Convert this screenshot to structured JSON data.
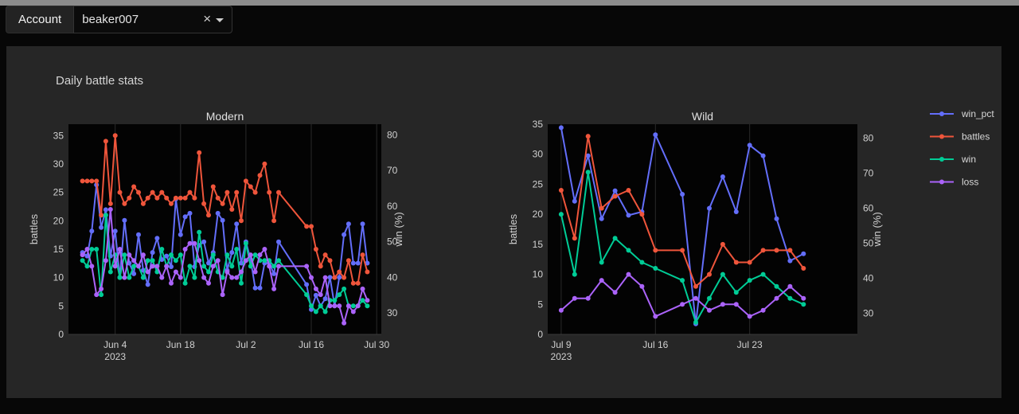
{
  "account": {
    "label": "Account",
    "value": "beaker007",
    "clear": "×"
  },
  "colors": {
    "win_pct": "#636efa",
    "battles": "#ef553b",
    "win": "#00cc96",
    "loss": "#ab63fa"
  },
  "chart_data": {
    "type": "line",
    "title": "Daily battle stats",
    "legend": [
      "win_pct",
      "battles",
      "win",
      "loss"
    ],
    "legend_position": "right",
    "subplots": [
      {
        "name": "Modern",
        "xlabel": "",
        "ylabel": "battles",
        "y2label": "win (%)",
        "xrange": [
          "2023-05-25",
          "2023-07-31"
        ],
        "xticks": [
          {
            "date": "2023-06-04",
            "label": "Jun 4",
            "sub": "2023"
          },
          {
            "date": "2023-06-18",
            "label": "Jun 18",
            "sub": ""
          },
          {
            "date": "2023-07-02",
            "label": "Jul 2",
            "sub": ""
          },
          {
            "date": "2023-07-16",
            "label": "Jul 16",
            "sub": ""
          },
          {
            "date": "2023-07-30",
            "label": "Jul 30",
            "sub": ""
          }
        ],
        "ylim": [
          0,
          37
        ],
        "yticks": [
          0,
          5,
          10,
          15,
          20,
          25,
          30,
          35
        ],
        "y2lim": [
          24,
          83
        ],
        "y2ticks": [
          30,
          40,
          50,
          60,
          70,
          80
        ],
        "series": [
          {
            "name": "win_pct",
            "axis": "y2",
            "x": [
              "2023-05-28",
              "2023-05-29",
              "2023-05-30",
              "2023-05-31",
              "2023-06-01",
              "2023-06-02",
              "2023-06-03",
              "2023-06-04",
              "2023-06-05",
              "2023-06-06",
              "2023-06-07",
              "2023-06-08",
              "2023-06-09",
              "2023-06-10",
              "2023-06-11",
              "2023-06-12",
              "2023-06-13",
              "2023-06-14",
              "2023-06-15",
              "2023-06-16",
              "2023-06-17",
              "2023-06-18",
              "2023-06-19",
              "2023-06-20",
              "2023-06-21",
              "2023-06-22",
              "2023-06-23",
              "2023-06-24",
              "2023-06-25",
              "2023-06-26",
              "2023-06-27",
              "2023-06-28",
              "2023-06-29",
              "2023-06-30",
              "2023-07-01",
              "2023-07-02",
              "2023-07-03",
              "2023-07-04",
              "2023-07-05",
              "2023-07-06",
              "2023-07-07",
              "2023-07-08",
              "2023-07-09",
              "2023-07-15",
              "2023-07-16",
              "2023-07-17",
              "2023-07-18",
              "2023-07-19",
              "2023-07-20",
              "2023-07-21",
              "2023-07-22",
              "2023-07-23",
              "2023-07-24",
              "2023-07-25",
              "2023-07-26",
              "2023-07-27",
              "2023-07-28"
            ],
            "values": [
              47,
              46,
              53,
              66,
              54,
              59,
              46,
              53,
              40,
              56,
              44,
              41,
              52,
              42,
              38,
              47,
              51,
              45,
              46,
              43,
              62,
              52,
              57,
              58,
              43,
              49,
              50,
              44,
              47,
              58,
              56,
              42,
              47,
              55,
              44,
              50,
              45,
              37,
              37,
              44,
              44,
              41,
              50,
              38,
              31,
              35,
              32,
              34,
              40,
              32,
              40,
              52,
              55,
              44,
              44,
              55,
              44
            ]
          },
          {
            "name": "battles",
            "axis": "y",
            "x": [
              "2023-05-28",
              "2023-05-29",
              "2023-05-30",
              "2023-05-31",
              "2023-06-01",
              "2023-06-02",
              "2023-06-03",
              "2023-06-04",
              "2023-06-05",
              "2023-06-06",
              "2023-06-07",
              "2023-06-08",
              "2023-06-09",
              "2023-06-10",
              "2023-06-11",
              "2023-06-12",
              "2023-06-13",
              "2023-06-14",
              "2023-06-15",
              "2023-06-16",
              "2023-06-17",
              "2023-06-18",
              "2023-06-19",
              "2023-06-20",
              "2023-06-21",
              "2023-06-22",
              "2023-06-23",
              "2023-06-24",
              "2023-06-25",
              "2023-06-26",
              "2023-06-27",
              "2023-06-28",
              "2023-06-29",
              "2023-06-30",
              "2023-07-01",
              "2023-07-02",
              "2023-07-03",
              "2023-07-04",
              "2023-07-05",
              "2023-07-06",
              "2023-07-07",
              "2023-07-08",
              "2023-07-09",
              "2023-07-15",
              "2023-07-16",
              "2023-07-17",
              "2023-07-18",
              "2023-07-19",
              "2023-07-20",
              "2023-07-21",
              "2023-07-22",
              "2023-07-23",
              "2023-07-24",
              "2023-07-25",
              "2023-07-26",
              "2023-07-27",
              "2023-07-28"
            ],
            "values": [
              27,
              27,
              27,
              27,
              21,
              34,
              23,
              35,
              25,
              23,
              24,
              26,
              25,
              23,
              24,
              25,
              24,
              25,
              24,
              23,
              24,
              24,
              24,
              25,
              24,
              32,
              23,
              21,
              26,
              24,
              23,
              25,
              22,
              25,
              20,
              27,
              26,
              25,
              28,
              30,
              25,
              20,
              25,
              19,
              19,
              15,
              12,
              14,
              13,
              10,
              11,
              10,
              13,
              9,
              9,
              14,
              11
            ]
          },
          {
            "name": "win",
            "axis": "y",
            "x": [
              "2023-05-28",
              "2023-05-29",
              "2023-05-30",
              "2023-05-31",
              "2023-06-01",
              "2023-06-02",
              "2023-06-03",
              "2023-06-04",
              "2023-06-05",
              "2023-06-06",
              "2023-06-07",
              "2023-06-08",
              "2023-06-09",
              "2023-06-10",
              "2023-06-11",
              "2023-06-12",
              "2023-06-13",
              "2023-06-14",
              "2023-06-15",
              "2023-06-16",
              "2023-06-17",
              "2023-06-18",
              "2023-06-19",
              "2023-06-20",
              "2023-06-21",
              "2023-06-22",
              "2023-06-23",
              "2023-06-24",
              "2023-06-25",
              "2023-06-26",
              "2023-06-27",
              "2023-06-28",
              "2023-06-29",
              "2023-06-30",
              "2023-07-01",
              "2023-07-02",
              "2023-07-03",
              "2023-07-04",
              "2023-07-05",
              "2023-07-06",
              "2023-07-07",
              "2023-07-08",
              "2023-07-09",
              "2023-07-15",
              "2023-07-16",
              "2023-07-17",
              "2023-07-18",
              "2023-07-19",
              "2023-07-20",
              "2023-07-21",
              "2023-07-22",
              "2023-07-23",
              "2023-07-24",
              "2023-07-25",
              "2023-07-26",
              "2023-07-27",
              "2023-07-28"
            ],
            "values": [
              13,
              12,
              15,
              15,
              7,
              21,
              11,
              14,
              10,
              14,
              10,
              12,
              12,
              10,
              13,
              13,
              11,
              15,
              12,
              14,
              13,
              14,
              9,
              12,
              10,
              18,
              12,
              11,
              14,
              11,
              10,
              14,
              12,
              15,
              9,
              16,
              12,
              14,
              13,
              13,
              13,
              12,
              13,
              7,
              5,
              4,
              5,
              4,
              6,
              6,
              7,
              8,
              5,
              5,
              5,
              6,
              5
            ]
          },
          {
            "name": "loss",
            "axis": "y",
            "x": [
              "2023-05-28",
              "2023-05-29",
              "2023-05-30",
              "2023-05-31",
              "2023-06-01",
              "2023-06-02",
              "2023-06-03",
              "2023-06-04",
              "2023-06-05",
              "2023-06-06",
              "2023-06-07",
              "2023-06-08",
              "2023-06-09",
              "2023-06-10",
              "2023-06-11",
              "2023-06-12",
              "2023-06-13",
              "2023-06-14",
              "2023-06-15",
              "2023-06-16",
              "2023-06-17",
              "2023-06-18",
              "2023-06-19",
              "2023-06-20",
              "2023-06-21",
              "2023-06-22",
              "2023-06-23",
              "2023-06-24",
              "2023-06-25",
              "2023-06-26",
              "2023-06-27",
              "2023-06-28",
              "2023-06-29",
              "2023-06-30",
              "2023-07-01",
              "2023-07-02",
              "2023-07-03",
              "2023-07-04",
              "2023-07-05",
              "2023-07-06",
              "2023-07-07",
              "2023-07-08",
              "2023-07-09",
              "2023-07-15",
              "2023-07-16",
              "2023-07-17",
              "2023-07-18",
              "2023-07-19",
              "2023-07-20",
              "2023-07-21",
              "2023-07-22",
              "2023-07-23",
              "2023-07-24",
              "2023-07-25",
              "2023-07-26",
              "2023-07-27",
              "2023-07-28"
            ],
            "values": [
              14,
              15,
              12,
              7,
              8,
              13,
              22,
              12,
              15,
              10,
              14,
              13,
              12,
              14,
              11,
              12,
              12,
              10,
              12,
              9,
              11,
              10,
              15,
              16,
              16,
              13,
              10,
              9,
              12,
              13,
              7,
              11,
              10,
              10,
              11,
              13,
              14,
              11,
              14,
              15,
              12,
              8,
              12,
              12,
              10,
              8,
              7,
              10,
              5,
              5,
              5,
              2,
              5,
              4,
              5,
              8,
              6
            ]
          }
        ]
      },
      {
        "name": "Wild",
        "xlabel": "",
        "ylabel": "battles",
        "y2label": "win (%)",
        "xrange": [
          "2023-07-08",
          "2023-07-31"
        ],
        "xticks": [
          {
            "date": "2023-07-09",
            "label": "Jul 9",
            "sub": "2023"
          },
          {
            "date": "2023-07-16",
            "label": "Jul 16",
            "sub": ""
          },
          {
            "date": "2023-07-23",
            "label": "Jul 23",
            "sub": ""
          }
        ],
        "ylim": [
          0,
          35
        ],
        "yticks": [
          0,
          5,
          10,
          15,
          20,
          25,
          30,
          35
        ],
        "y2lim": [
          24,
          84
        ],
        "y2ticks": [
          30,
          40,
          50,
          60,
          70,
          80
        ],
        "series": [
          {
            "name": "win_pct",
            "axis": "y2",
            "x": [
              "2023-07-09",
              "2023-07-10",
              "2023-07-11",
              "2023-07-12",
              "2023-07-13",
              "2023-07-14",
              "2023-07-15",
              "2023-07-16",
              "2023-07-18",
              "2023-07-19",
              "2023-07-20",
              "2023-07-21",
              "2023-07-22",
              "2023-07-23",
              "2023-07-24",
              "2023-07-25",
              "2023-07-26",
              "2023-07-27"
            ],
            "values": [
              83,
              62,
              75,
              57,
              65,
              58,
              59,
              81,
              64,
              27,
              60,
              69,
              59,
              78,
              75,
              57,
              45,
              47
            ]
          },
          {
            "name": "battles",
            "axis": "y",
            "x": [
              "2023-07-09",
              "2023-07-10",
              "2023-07-11",
              "2023-07-12",
              "2023-07-13",
              "2023-07-14",
              "2023-07-15",
              "2023-07-16",
              "2023-07-18",
              "2023-07-19",
              "2023-07-20",
              "2023-07-21",
              "2023-07-22",
              "2023-07-23",
              "2023-07-24",
              "2023-07-25",
              "2023-07-26",
              "2023-07-27"
            ],
            "values": [
              24,
              16,
              33,
              21,
              23,
              24,
              20,
              14,
              14,
              8,
              10,
              15,
              12,
              12,
              14,
              14,
              14,
              11
            ]
          },
          {
            "name": "win",
            "axis": "y",
            "x": [
              "2023-07-09",
              "2023-07-10",
              "2023-07-11",
              "2023-07-12",
              "2023-07-13",
              "2023-07-14",
              "2023-07-15",
              "2023-07-16",
              "2023-07-18",
              "2023-07-19",
              "2023-07-20",
              "2023-07-21",
              "2023-07-22",
              "2023-07-23",
              "2023-07-24",
              "2023-07-25",
              "2023-07-26",
              "2023-07-27"
            ],
            "values": [
              20,
              10,
              27,
              12,
              16,
              14,
              12,
              11,
              9,
              2,
              6,
              10,
              7,
              9,
              10,
              8,
              6,
              5
            ]
          },
          {
            "name": "loss",
            "axis": "y",
            "x": [
              "2023-07-09",
              "2023-07-10",
              "2023-07-11",
              "2023-07-12",
              "2023-07-13",
              "2023-07-14",
              "2023-07-15",
              "2023-07-16",
              "2023-07-18",
              "2023-07-19",
              "2023-07-20",
              "2023-07-21",
              "2023-07-22",
              "2023-07-23",
              "2023-07-24",
              "2023-07-25",
              "2023-07-26",
              "2023-07-27"
            ],
            "values": [
              4,
              6,
              6,
              9,
              7,
              10,
              8,
              3,
              5,
              6,
              4,
              5,
              5,
              3,
              4,
              6,
              8,
              6
            ]
          }
        ]
      }
    ]
  }
}
